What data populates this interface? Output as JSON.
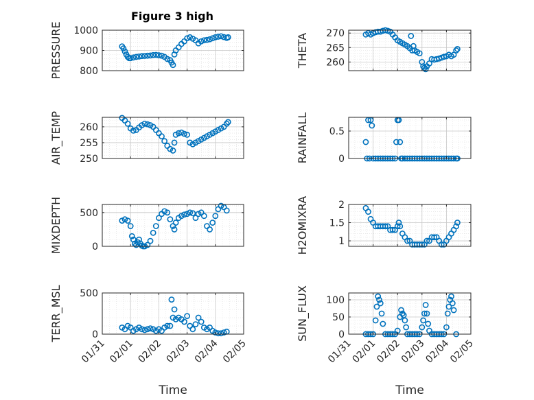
{
  "title": "Figure 3 high",
  "marker_color": "#0072BD",
  "axis_color": "#262626",
  "grid_color": "#dcdcdc",
  "xaxis": {
    "label": "Time",
    "ticks": [
      0,
      1,
      2,
      3,
      4,
      5
    ],
    "tick_labels": [
      "01/31",
      "02/01",
      "02/02",
      "02/03",
      "02/04",
      "02/05"
    ],
    "xlim": [
      0,
      5
    ]
  },
  "chart_data": [
    {
      "type": "scatter",
      "ylabel": "PRESSURE",
      "ylim": [
        800,
        1000
      ],
      "yticks": [
        800,
        900,
        1000
      ],
      "grid": true,
      "x": [
        0.7,
        0.75,
        0.8,
        0.85,
        0.9,
        0.95,
        1.0,
        1.1,
        1.2,
        1.3,
        1.4,
        1.5,
        1.6,
        1.7,
        1.8,
        1.9,
        2.0,
        2.1,
        2.2,
        2.3,
        2.4,
        2.45,
        2.5,
        2.55,
        2.6,
        2.7,
        2.8,
        2.9,
        3.0,
        3.1,
        3.2,
        3.3,
        3.4,
        3.5,
        3.6,
        3.7,
        3.8,
        3.9,
        4.0,
        4.1,
        4.2,
        4.3,
        4.4,
        4.45
      ],
      "y": [
        920,
        910,
        895,
        880,
        868,
        862,
        862,
        865,
        868,
        870,
        872,
        873,
        874,
        875,
        877,
        878,
        876,
        874,
        868,
        858,
        852,
        840,
        828,
        880,
        900,
        915,
        932,
        945,
        960,
        965,
        958,
        950,
        935,
        945,
        950,
        952,
        955,
        960,
        965,
        968,
        970,
        966,
        962,
        965
      ]
    },
    {
      "type": "scatter",
      "ylabel": "THETA",
      "ylim": [
        257,
        271
      ],
      "yticks": [
        260,
        265,
        270
      ],
      "grid": true,
      "x": [
        0.7,
        0.8,
        0.9,
        1.0,
        1.1,
        1.2,
        1.3,
        1.4,
        1.5,
        1.6,
        1.7,
        1.8,
        1.9,
        2.0,
        2.1,
        2.2,
        2.3,
        2.4,
        2.5,
        2.55,
        2.6,
        2.65,
        2.7,
        2.8,
        2.9,
        3.0,
        3.05,
        3.1,
        3.15,
        3.2,
        3.3,
        3.4,
        3.5,
        3.6,
        3.7,
        3.8,
        3.9,
        4.0,
        4.1,
        4.2,
        4.3,
        4.4,
        4.45
      ],
      "y": [
        269.5,
        270,
        269.5,
        270,
        270.3,
        270.5,
        270.5,
        270.8,
        271,
        270.8,
        270.5,
        269.5,
        268.5,
        267.5,
        267,
        266.5,
        266,
        265.5,
        264.8,
        269,
        264,
        265.5,
        264,
        263.5,
        263,
        260,
        258.5,
        258,
        257.5,
        258.5,
        259.5,
        261,
        260.8,
        261,
        261.2,
        261.5,
        261.8,
        262,
        262.5,
        262,
        262.5,
        264,
        264.5
      ]
    },
    {
      "type": "scatter",
      "ylabel": "AIR_TEMP",
      "ylim": [
        250,
        263
      ],
      "yticks": [
        250,
        255,
        260
      ],
      "grid": true,
      "x": [
        0.7,
        0.8,
        0.9,
        1.0,
        1.1,
        1.2,
        1.3,
        1.4,
        1.5,
        1.6,
        1.7,
        1.8,
        1.9,
        2.0,
        2.1,
        2.2,
        2.3,
        2.4,
        2.5,
        2.55,
        2.6,
        2.7,
        2.8,
        2.9,
        3.0,
        3.1,
        3.2,
        3.3,
        3.4,
        3.5,
        3.6,
        3.7,
        3.8,
        3.9,
        4.0,
        4.1,
        4.2,
        4.3,
        4.4,
        4.45
      ],
      "y": [
        262.8,
        262,
        261,
        259.5,
        258.8,
        259,
        259.8,
        260.5,
        261,
        260.8,
        260.5,
        260,
        259,
        258,
        257,
        255.5,
        254,
        253,
        252.5,
        255,
        257.5,
        258,
        258.2,
        257.8,
        257.5,
        255,
        254.5,
        255,
        255.5,
        256,
        256.5,
        257,
        257.5,
        258,
        258.5,
        259,
        259.5,
        260,
        261,
        261.5
      ]
    },
    {
      "type": "scatter",
      "ylabel": "RAINFALL",
      "ylim": [
        0,
        0.75
      ],
      "yticks": [
        0,
        0.5
      ],
      "ytick_labels": [
        "0",
        "0.5"
      ],
      "grid": true,
      "x": [
        0.7,
        0.75,
        0.8,
        0.85,
        0.9,
        0.95,
        1.0,
        1.1,
        1.2,
        1.3,
        1.4,
        1.5,
        1.6,
        1.7,
        1.8,
        1.9,
        1.95,
        2.0,
        2.05,
        2.1,
        2.15,
        2.2,
        2.3,
        2.4,
        2.5,
        2.6,
        2.7,
        2.8,
        2.9,
        3.0,
        3.1,
        3.2,
        3.3,
        3.4,
        3.5,
        3.6,
        3.7,
        3.8,
        3.9,
        4.0,
        4.1,
        4.2,
        4.3,
        4.4,
        4.45
      ],
      "y": [
        0.3,
        0,
        0.7,
        0,
        0.7,
        0.6,
        0,
        0,
        0,
        0,
        0,
        0,
        0,
        0,
        0,
        0,
        0.3,
        0.7,
        0.7,
        0.3,
        0,
        0,
        0,
        0,
        0,
        0,
        0,
        0,
        0,
        0,
        0,
        0,
        0,
        0,
        0,
        0,
        0,
        0,
        0,
        0,
        0,
        0,
        0,
        0,
        0
      ]
    },
    {
      "type": "scatter",
      "ylabel": "MIXDEPTH",
      "ylim": [
        0,
        620
      ],
      "yticks": [
        0,
        500
      ],
      "grid": true,
      "x": [
        0.7,
        0.8,
        0.9,
        1.0,
        1.05,
        1.1,
        1.15,
        1.2,
        1.25,
        1.3,
        1.35,
        1.4,
        1.45,
        1.5,
        1.6,
        1.7,
        1.8,
        1.9,
        2.0,
        2.1,
        2.2,
        2.3,
        2.4,
        2.5,
        2.55,
        2.6,
        2.7,
        2.8,
        2.9,
        3.0,
        3.1,
        3.2,
        3.3,
        3.4,
        3.5,
        3.6,
        3.7,
        3.8,
        3.9,
        4.0,
        4.1,
        4.2,
        4.3,
        4.4
      ],
      "y": [
        380,
        400,
        380,
        300,
        150,
        100,
        40,
        20,
        60,
        100,
        40,
        10,
        0,
        0,
        20,
        80,
        200,
        300,
        420,
        480,
        520,
        500,
        400,
        300,
        250,
        350,
        420,
        450,
        470,
        480,
        500,
        490,
        420,
        480,
        500,
        450,
        300,
        250,
        350,
        450,
        550,
        600,
        580,
        530
      ]
    },
    {
      "type": "scatter",
      "ylabel": "H2OMIXRA",
      "ylim": [
        0.85,
        2.0
      ],
      "yticks": [
        1,
        1.5,
        2
      ],
      "grid": true,
      "x": [
        0.7,
        0.8,
        0.9,
        1.0,
        1.1,
        1.2,
        1.3,
        1.4,
        1.5,
        1.6,
        1.7,
        1.8,
        1.9,
        2.0,
        2.05,
        2.1,
        2.2,
        2.3,
        2.4,
        2.5,
        2.6,
        2.7,
        2.8,
        2.9,
        3.0,
        3.1,
        3.2,
        3.3,
        3.4,
        3.5,
        3.6,
        3.7,
        3.8,
        3.9,
        4.0,
        4.1,
        4.2,
        4.3,
        4.4,
        4.45
      ],
      "y": [
        1.9,
        1.8,
        1.6,
        1.5,
        1.4,
        1.4,
        1.4,
        1.4,
        1.4,
        1.4,
        1.3,
        1.3,
        1.3,
        1.4,
        1.5,
        1.4,
        1.2,
        1.1,
        1.0,
        1.0,
        0.9,
        0.9,
        0.9,
        0.9,
        0.9,
        0.9,
        1.0,
        1.0,
        1.1,
        1.1,
        1.1,
        1.0,
        0.9,
        0.9,
        1.0,
        1.1,
        1.2,
        1.3,
        1.4,
        1.5
      ]
    },
    {
      "type": "scatter",
      "ylabel": "TERR_MSL",
      "ylim": [
        0,
        500
      ],
      "yticks": [
        0,
        500
      ],
      "grid": true,
      "x": [
        0.7,
        0.8,
        0.9,
        1.0,
        1.1,
        1.2,
        1.3,
        1.4,
        1.5,
        1.6,
        1.7,
        1.8,
        1.9,
        2.0,
        2.1,
        2.2,
        2.3,
        2.4,
        2.45,
        2.5,
        2.55,
        2.6,
        2.7,
        2.8,
        2.9,
        3.0,
        3.1,
        3.2,
        3.3,
        3.4,
        3.5,
        3.6,
        3.7,
        3.8,
        3.9,
        4.0,
        4.1,
        4.2,
        4.3,
        4.4
      ],
      "y": [
        80,
        60,
        100,
        80,
        40,
        60,
        80,
        60,
        50,
        60,
        70,
        60,
        40,
        60,
        40,
        80,
        100,
        100,
        420,
        200,
        300,
        180,
        200,
        180,
        150,
        220,
        100,
        60,
        120,
        200,
        150,
        80,
        60,
        80,
        40,
        20,
        10,
        10,
        20,
        30
      ]
    },
    {
      "type": "scatter",
      "ylabel": "SUN_FLUX",
      "ylim": [
        0,
        120
      ],
      "yticks": [
        0,
        50,
        100
      ],
      "grid": true,
      "x": [
        0.7,
        0.8,
        0.9,
        1.0,
        1.1,
        1.15,
        1.2,
        1.25,
        1.3,
        1.35,
        1.4,
        1.5,
        1.6,
        1.7,
        1.8,
        1.9,
        2.0,
        2.1,
        2.15,
        2.2,
        2.25,
        2.3,
        2.35,
        2.4,
        2.5,
        2.6,
        2.7,
        2.8,
        2.9,
        3.0,
        3.05,
        3.1,
        3.15,
        3.2,
        3.25,
        3.3,
        3.4,
        3.5,
        3.6,
        3.7,
        3.8,
        3.9,
        4.0,
        4.05,
        4.1,
        4.15,
        4.2,
        4.25,
        4.3,
        4.4
      ],
      "y": [
        0,
        0,
        0,
        0,
        40,
        80,
        110,
        100,
        90,
        60,
        30,
        0,
        0,
        0,
        0,
        0,
        10,
        50,
        70,
        60,
        55,
        40,
        20,
        0,
        0,
        0,
        0,
        0,
        0,
        20,
        40,
        60,
        85,
        60,
        30,
        10,
        0,
        0,
        0,
        0,
        0,
        0,
        20,
        60,
        80,
        100,
        110,
        90,
        70,
        0
      ]
    }
  ]
}
